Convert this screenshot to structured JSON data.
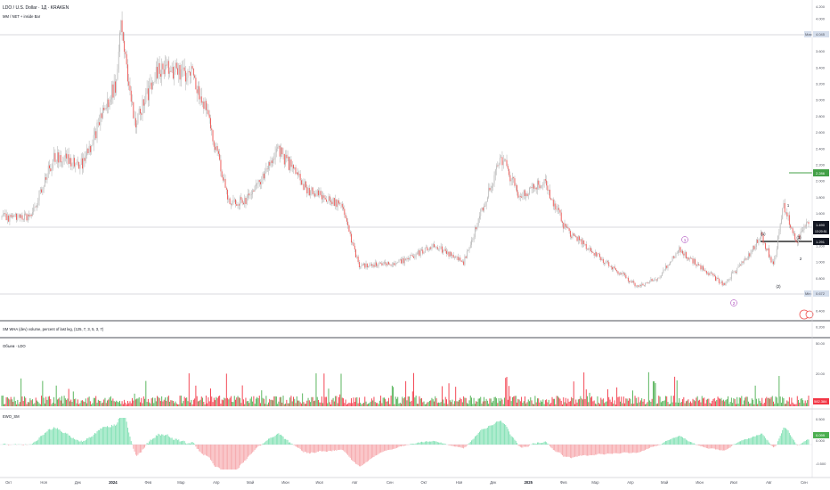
{
  "header": {
    "symbol_line": "LDO / U.S. Dollar · 1Д · KRAKEN",
    "indicator_line": "MM / NET + inside Bar"
  },
  "colors": {
    "up": "#26a69a",
    "down": "#ef5350",
    "price_gray": "#9e9e9e",
    "vol_up": "#4caf50",
    "vol_down": "#f23645",
    "osc_pos": "#7ee0b2",
    "osc_neg": "#f6a6aa",
    "accent_green": "#43a047",
    "label_blue": "#d5deec",
    "wave_purple": "#9c27b0"
  },
  "price_panel": {
    "max_label": "Max",
    "max_value": "4.045",
    "min_label": "Min",
    "min_value": "0.672",
    "target_value": "2.286",
    "last_price": "1.490",
    "last_countdown": "13:20:51",
    "level_value": "1.291",
    "y_ticks": [
      "4.000",
      "3.800",
      "3.600",
      "3.400",
      "3.200",
      "3.000",
      "2.800",
      "2.600",
      "2.400",
      "2.200",
      "2.000",
      "1.800",
      "1.600",
      "1.400",
      "1.200",
      "1.000",
      "0.800",
      "0.600",
      "0.400",
      "0.200"
    ],
    "axis_top": "4.200",
    "wave_labels": [
      "1",
      "(1)",
      "(2)",
      "2",
      "1",
      "2",
      "(1)",
      "(2)"
    ]
  },
  "volume_panel": {
    "title": "SM WHA (dev) volume, percent of last leg, (125, 7, 3, 5, 3, 7)",
    "series_label": "Объем · LDO",
    "last_value": "582.384",
    "y_ticks": [
      "50.00",
      "20.00"
    ]
  },
  "oscillator_panel": {
    "title": "EWO_SM",
    "last_value": "0.099",
    "y_ticks": [
      "0.500",
      "0.000",
      "-0.500"
    ]
  },
  "x_axis": {
    "labels": [
      "Окт",
      "Ноя",
      "Дек",
      "2024",
      "Фев",
      "Мар",
      "Апр",
      "Май",
      "Июн",
      "Июл",
      "Авг",
      "Сен",
      "Окт",
      "Ноя",
      "Дек",
      "2025",
      "Фев",
      "Мар",
      "Апр",
      "Май",
      "Июн",
      "Июл",
      "Авг",
      "Сен"
    ]
  },
  "chart_data": {
    "type": "candlestick",
    "x_start": "2023-09-25",
    "x_end": "2025-09-05",
    "y_range": [
      0.2,
      4.2
    ],
    "anchors": [
      {
        "date": "2023-09-25",
        "price": 1.55
      },
      {
        "date": "2023-10-20",
        "price": 1.55
      },
      {
        "date": "2023-11-10",
        "price": 2.3
      },
      {
        "date": "2023-12-05",
        "price": 2.2
      },
      {
        "date": "2024-01-03",
        "price": 3.2
      },
      {
        "date": "2024-01-08",
        "price": 3.9
      },
      {
        "date": "2024-01-20",
        "price": 2.7
      },
      {
        "date": "2024-02-10",
        "price": 3.4
      },
      {
        "date": "2024-03-12",
        "price": 3.3
      },
      {
        "date": "2024-03-25",
        "price": 2.8
      },
      {
        "date": "2024-04-13",
        "price": 1.7
      },
      {
        "date": "2024-05-01",
        "price": 1.8
      },
      {
        "date": "2024-05-25",
        "price": 2.4
      },
      {
        "date": "2024-06-20",
        "price": 1.9
      },
      {
        "date": "2024-07-20",
        "price": 1.7
      },
      {
        "date": "2024-08-05",
        "price": 0.95
      },
      {
        "date": "2024-09-10",
        "price": 1.0
      },
      {
        "date": "2024-10-10",
        "price": 1.2
      },
      {
        "date": "2024-11-05",
        "price": 1.0
      },
      {
        "date": "2024-12-08",
        "price": 2.3
      },
      {
        "date": "2024-12-25",
        "price": 1.8
      },
      {
        "date": "2025-01-15",
        "price": 2.0
      },
      {
        "date": "2025-02-03",
        "price": 1.4
      },
      {
        "date": "2025-03-01",
        "price": 1.1
      },
      {
        "date": "2025-04-07",
        "price": 0.7
      },
      {
        "date": "2025-04-25",
        "price": 0.8
      },
      {
        "date": "2025-05-14",
        "price": 1.15
      },
      {
        "date": "2025-06-22",
        "price": 0.72
      },
      {
        "date": "2025-07-15",
        "price": 1.1
      },
      {
        "date": "2025-07-25",
        "price": 1.35
      },
      {
        "date": "2025-08-05",
        "price": 0.95
      },
      {
        "date": "2025-08-14",
        "price": 1.7
      },
      {
        "date": "2025-08-25",
        "price": 1.25
      },
      {
        "date": "2025-09-03",
        "price": 1.49
      }
    ]
  }
}
